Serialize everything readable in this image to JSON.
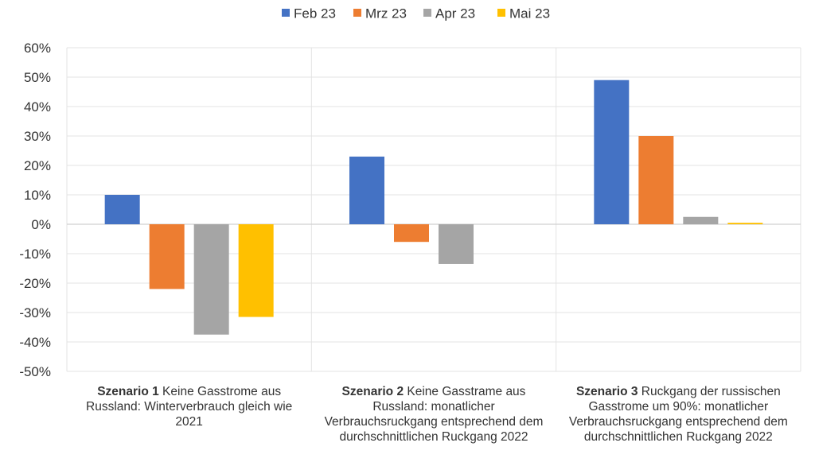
{
  "chart_data": {
    "type": "bar",
    "categories": [
      {
        "bold": "Szenario 1",
        "text": " Keine Gasstrome aus Russland: Winterverbrauch gleich wie 2021"
      },
      {
        "bold": "Szenario 2",
        "text": " Keine Gasstrame aus Russland: monatlicher Verbrauchsruckgang entsprechend dem durchschnittlichen Ruckgang 2022"
      },
      {
        "bold": "Szenario 3",
        "text": " Ruckgang der russischen Gasstrome um 90%: monatlicher Verbrauchsruckgang entsprechend dem durchschnittlichen Ruckgang 2022"
      }
    ],
    "series": [
      {
        "name": "Feb 23",
        "color": "#4472C4",
        "values": [
          10,
          23,
          49
        ]
      },
      {
        "name": "Mrz 23",
        "color": "#ED7D31",
        "values": [
          -22,
          -6,
          30
        ]
      },
      {
        "name": "Apr 23",
        "color": "#A5A5A5",
        "values": [
          -37.5,
          -13.5,
          2.5
        ]
      },
      {
        "name": "Mai 23",
        "color": "#FFC000",
        "values": [
          -31.5,
          null,
          0.5
        ]
      }
    ],
    "yticks": [
      "60%",
      "50%",
      "40%",
      "30%",
      "20%",
      "10%",
      "0%",
      "-10%",
      "-20%",
      "-30%",
      "-40%",
      "-50%"
    ],
    "ylim": [
      -50,
      60
    ],
    "grid": true,
    "legend": "top-center"
  }
}
